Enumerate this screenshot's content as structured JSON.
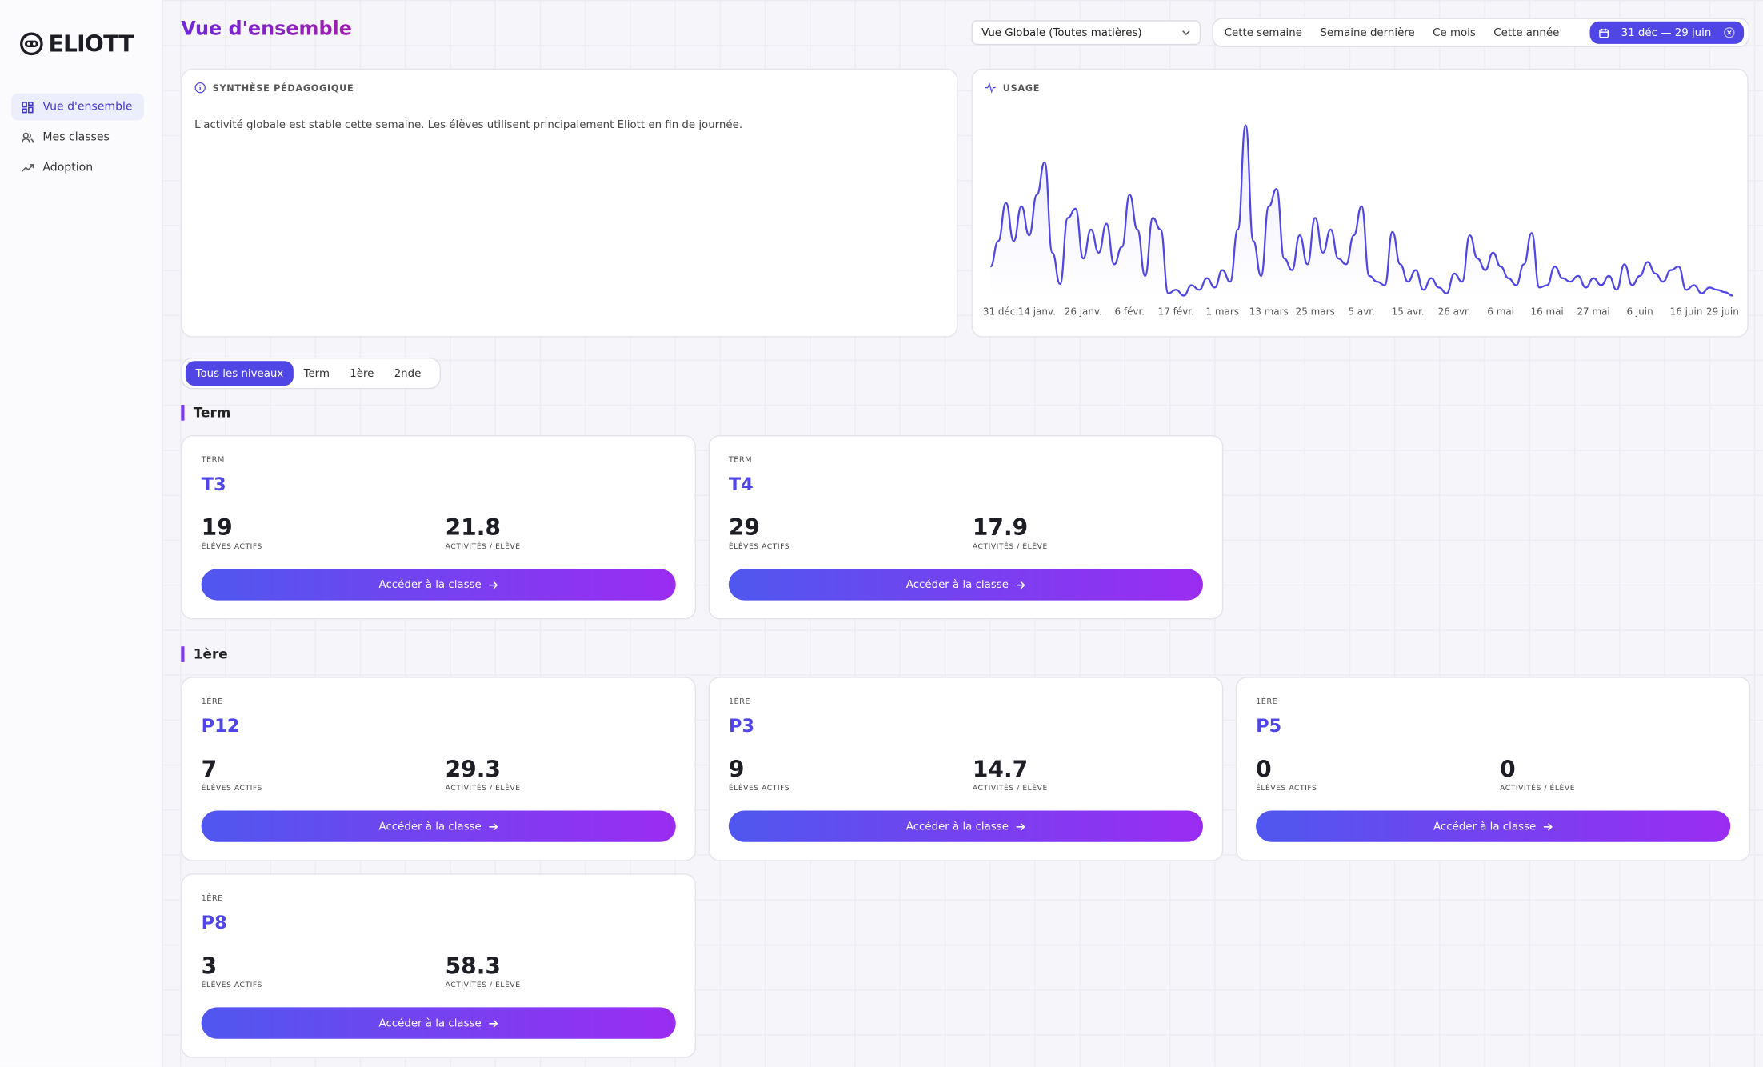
{
  "sidebar": {
    "logo": "ELIOTT",
    "nav": [
      "Vue d'ensemble",
      "Mes classes",
      "Adoption"
    ]
  },
  "header": {
    "title": "Vue d'ensemble",
    "select": "Vue Globale (Toutes matières)",
    "periods": [
      "Cette semaine",
      "Semaine dernière",
      "Ce mois",
      "Cette année"
    ],
    "range": "31 déc — 29 juin"
  },
  "synthesis": {
    "title": "SYNTHÈSE PÉDAGOGIQUE",
    "text": "L'activité globale est stable cette semaine. Les élèves utilisent principalement Eliott en fin de journée."
  },
  "chart_data": {
    "type": "line",
    "title": "USAGE",
    "color": "#4f46e5",
    "ylim": [
      0,
      160
    ],
    "categories": [
      "31 déc.",
      null,
      null,
      null,
      null,
      null,
      "14 janv.",
      null,
      null,
      null,
      null,
      null,
      "26 janv.",
      null,
      null,
      null,
      null,
      null,
      "6 févr.",
      null,
      null,
      null,
      null,
      null,
      "17 févr.",
      null,
      null,
      null,
      null,
      null,
      "1 mars",
      null,
      null,
      null,
      null,
      null,
      "13 mars",
      null,
      null,
      null,
      null,
      null,
      "25 mars",
      null,
      null,
      null,
      null,
      null,
      "5 avr.",
      null,
      null,
      null,
      null,
      null,
      "15 avr.",
      null,
      null,
      null,
      null,
      null,
      "26 avr.",
      null,
      null,
      null,
      null,
      null,
      "6 mai",
      null,
      null,
      null,
      null,
      null,
      "16 mai",
      null,
      null,
      null,
      null,
      null,
      "27 mai",
      null,
      null,
      null,
      null,
      null,
      "6 juin",
      null,
      null,
      null,
      null,
      null,
      "16 juin",
      null,
      null,
      null,
      null,
      null,
      "29 juin"
    ],
    "values": [
      28,
      50,
      83,
      50,
      80,
      55,
      90,
      118,
      40,
      13,
      70,
      78,
      35,
      60,
      40,
      65,
      30,
      45,
      90,
      60,
      20,
      70,
      60,
      5,
      8,
      3,
      12,
      8,
      18,
      10,
      25,
      15,
      60,
      150,
      50,
      20,
      80,
      95,
      35,
      25,
      55,
      30,
      70,
      40,
      60,
      35,
      30,
      55,
      80,
      20,
      15,
      12,
      58,
      30,
      15,
      25,
      8,
      18,
      10,
      5,
      22,
      15,
      55,
      35,
      25,
      40,
      28,
      18,
      12,
      30,
      57,
      10,
      12,
      28,
      18,
      15,
      20,
      10,
      18,
      12,
      20,
      8,
      30,
      12,
      20,
      32,
      22,
      15,
      25,
      28,
      8,
      12,
      5,
      10,
      8,
      6,
      3
    ]
  },
  "levels": [
    "Tous les niveaux",
    "Term",
    "1ère",
    "2nde"
  ],
  "labels": {
    "students": "ÉLÈVES ACTIFS",
    "activities": "ACTIVITÉS / ÉLÈVE",
    "button": "Accéder à la classe"
  },
  "groups": [
    {
      "name": "Term",
      "classes": [
        {
          "level": "TERM",
          "name": "T3",
          "students": 19,
          "activities": 21.8
        },
        {
          "level": "TERM",
          "name": "T4",
          "students": 29,
          "activities": 17.9
        }
      ]
    },
    {
      "name": "1ère",
      "classes": [
        {
          "level": "1ÈRE",
          "name": "P12",
          "students": 7,
          "activities": 29.3
        },
        {
          "level": "1ÈRE",
          "name": "P3",
          "students": 9,
          "activities": 14.7
        },
        {
          "level": "1ÈRE",
          "name": "P5",
          "students": 0,
          "activities": 0
        },
        {
          "level": "1ÈRE",
          "name": "P8",
          "students": 3,
          "activities": 58.3
        }
      ]
    }
  ]
}
